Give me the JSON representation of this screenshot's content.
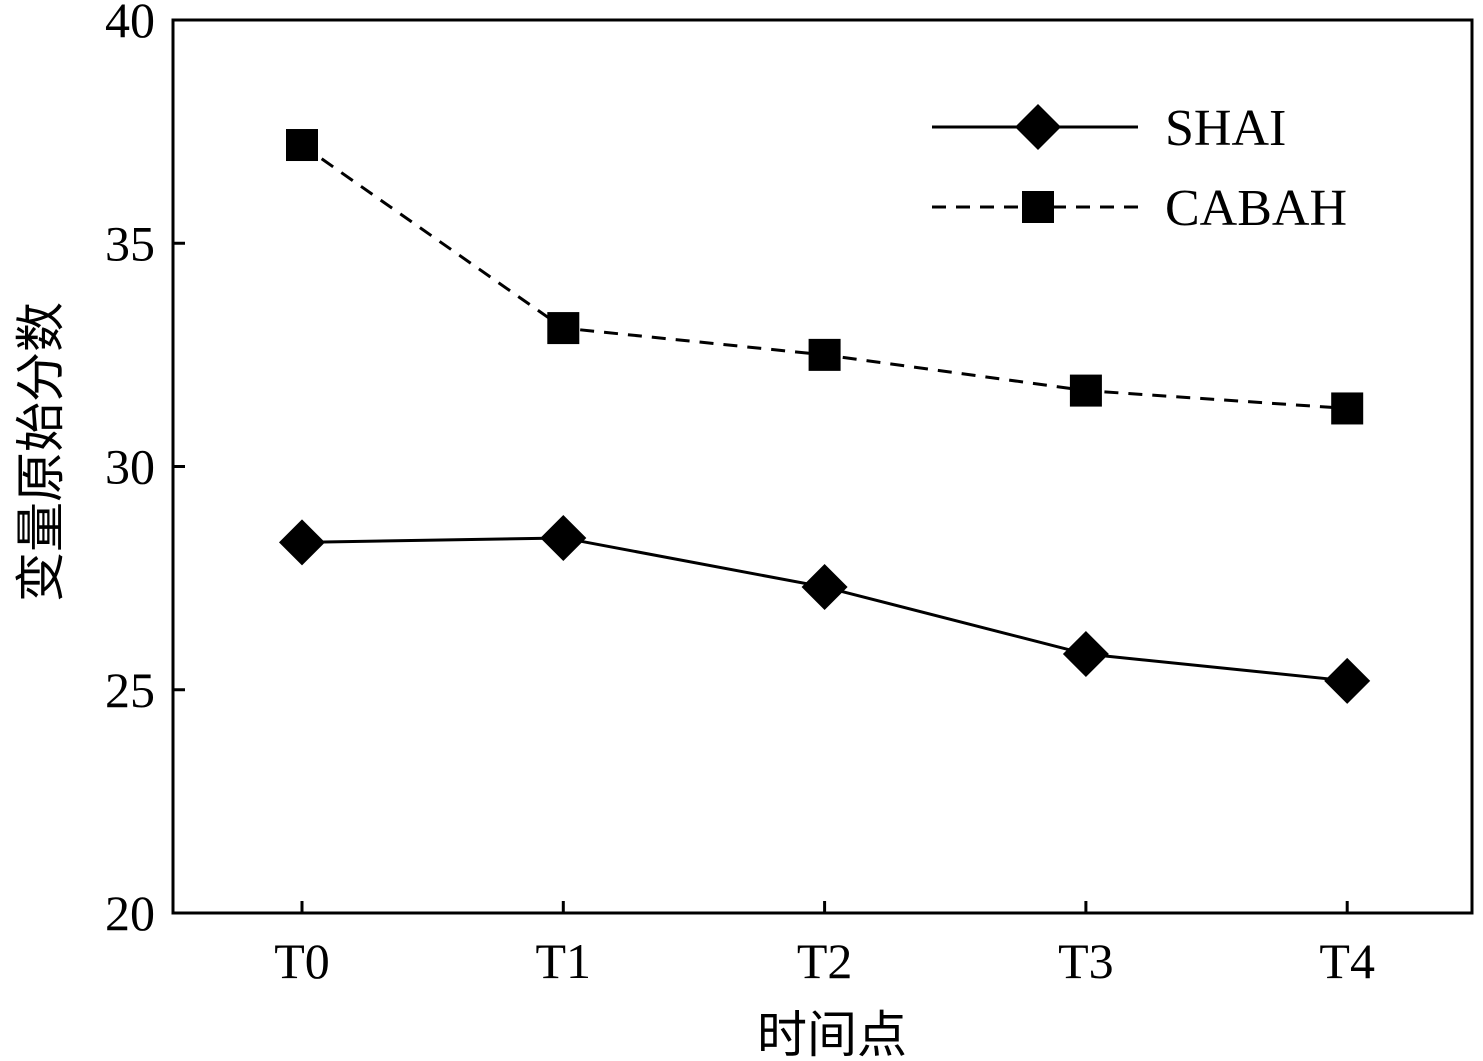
{
  "chart_data": {
    "type": "line",
    "title": "",
    "xlabel": "时间点",
    "ylabel": "变量原始分数",
    "categories": [
      "T0",
      "T1",
      "T2",
      "T3",
      "T4"
    ],
    "ylim": [
      20,
      40
    ],
    "yticks": [
      20,
      25,
      30,
      35,
      40
    ],
    "grid": false,
    "legend_position": "top-right",
    "series": [
      {
        "name": "SHAI",
        "marker": "diamond",
        "line": "solid",
        "color": "#000000",
        "values": [
          28.3,
          28.4,
          27.3,
          25.8,
          25.2
        ]
      },
      {
        "name": "CABAH",
        "marker": "square",
        "line": "dashed",
        "color": "#000000",
        "values": [
          37.2,
          33.1,
          32.5,
          31.7,
          31.3
        ]
      }
    ]
  }
}
